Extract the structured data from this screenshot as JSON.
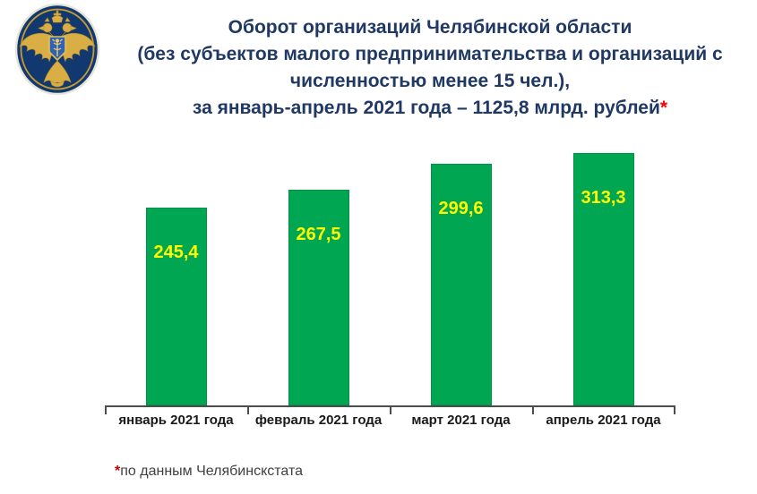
{
  "header": {
    "logo_name": "rosstat-emblem",
    "title_lines": [
      "Оборот организаций Челябинской области",
      "(без субъектов малого предпринимательства и организаций с",
      "численностью менее 15 чел.),",
      "за январь-апрель 2021 года – 1125,8 млрд. рублей"
    ],
    "title_asterisk": "*"
  },
  "chart_data": {
    "type": "bar",
    "title": "Оборот организаций Челябинской области за январь-апрель 2021 года – 1125,8 млрд. рублей",
    "categories": [
      "январь 2021 года",
      "февраль 2021 года",
      "март 2021 года",
      "апрель 2021 года"
    ],
    "values": [
      245.4,
      267.5,
      299.6,
      313.3
    ],
    "value_labels": [
      "245,4",
      "267,5",
      "299,6",
      "313,3"
    ],
    "xlabel": "",
    "ylabel": "",
    "ylim": [
      0,
      325
    ],
    "grid": false,
    "legend": false,
    "bar_color": "#00A651",
    "label_color": "#FFFF00",
    "axis_color": "#4d4d4d"
  },
  "footnote": {
    "asterisk": "*",
    "text": "по данным Челябинскстата"
  },
  "colors": {
    "title_text": "#1F3864",
    "title_asterisk": "#FF0000",
    "bar_fill": "#00A651",
    "bar_value_label": "#FFFF00",
    "footnote_text": "#404040",
    "footnote_asterisk": "#C00000"
  }
}
